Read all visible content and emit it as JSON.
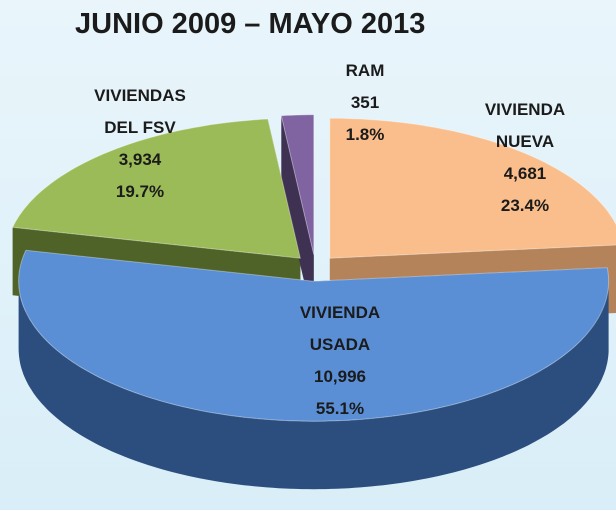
{
  "chart_data": {
    "type": "pie3d",
    "title": "JUNIO 2009 – MAYO 2013",
    "categories": [
      "VIVIENDA NUEVA",
      "VIVIENDA USADA",
      "VIVIENDAS DEL FSV",
      "RAM"
    ],
    "values": [
      4681,
      10996,
      3934,
      351
    ],
    "value_labels": [
      "4,681",
      "10,996",
      "3,934",
      "351"
    ],
    "percentages": [
      23.4,
      55.1,
      19.7,
      1.8
    ],
    "percentage_labels": [
      "23.4%",
      "55.1%",
      "19.7%",
      "1.8%"
    ],
    "colors": [
      "#f9be8c",
      "#5a8fd6",
      "#9bbb59",
      "#8064a2"
    ],
    "side_colors": [
      "#b5835a",
      "#2c4e7e",
      "#4f6228",
      "#3f3151"
    ]
  }
}
